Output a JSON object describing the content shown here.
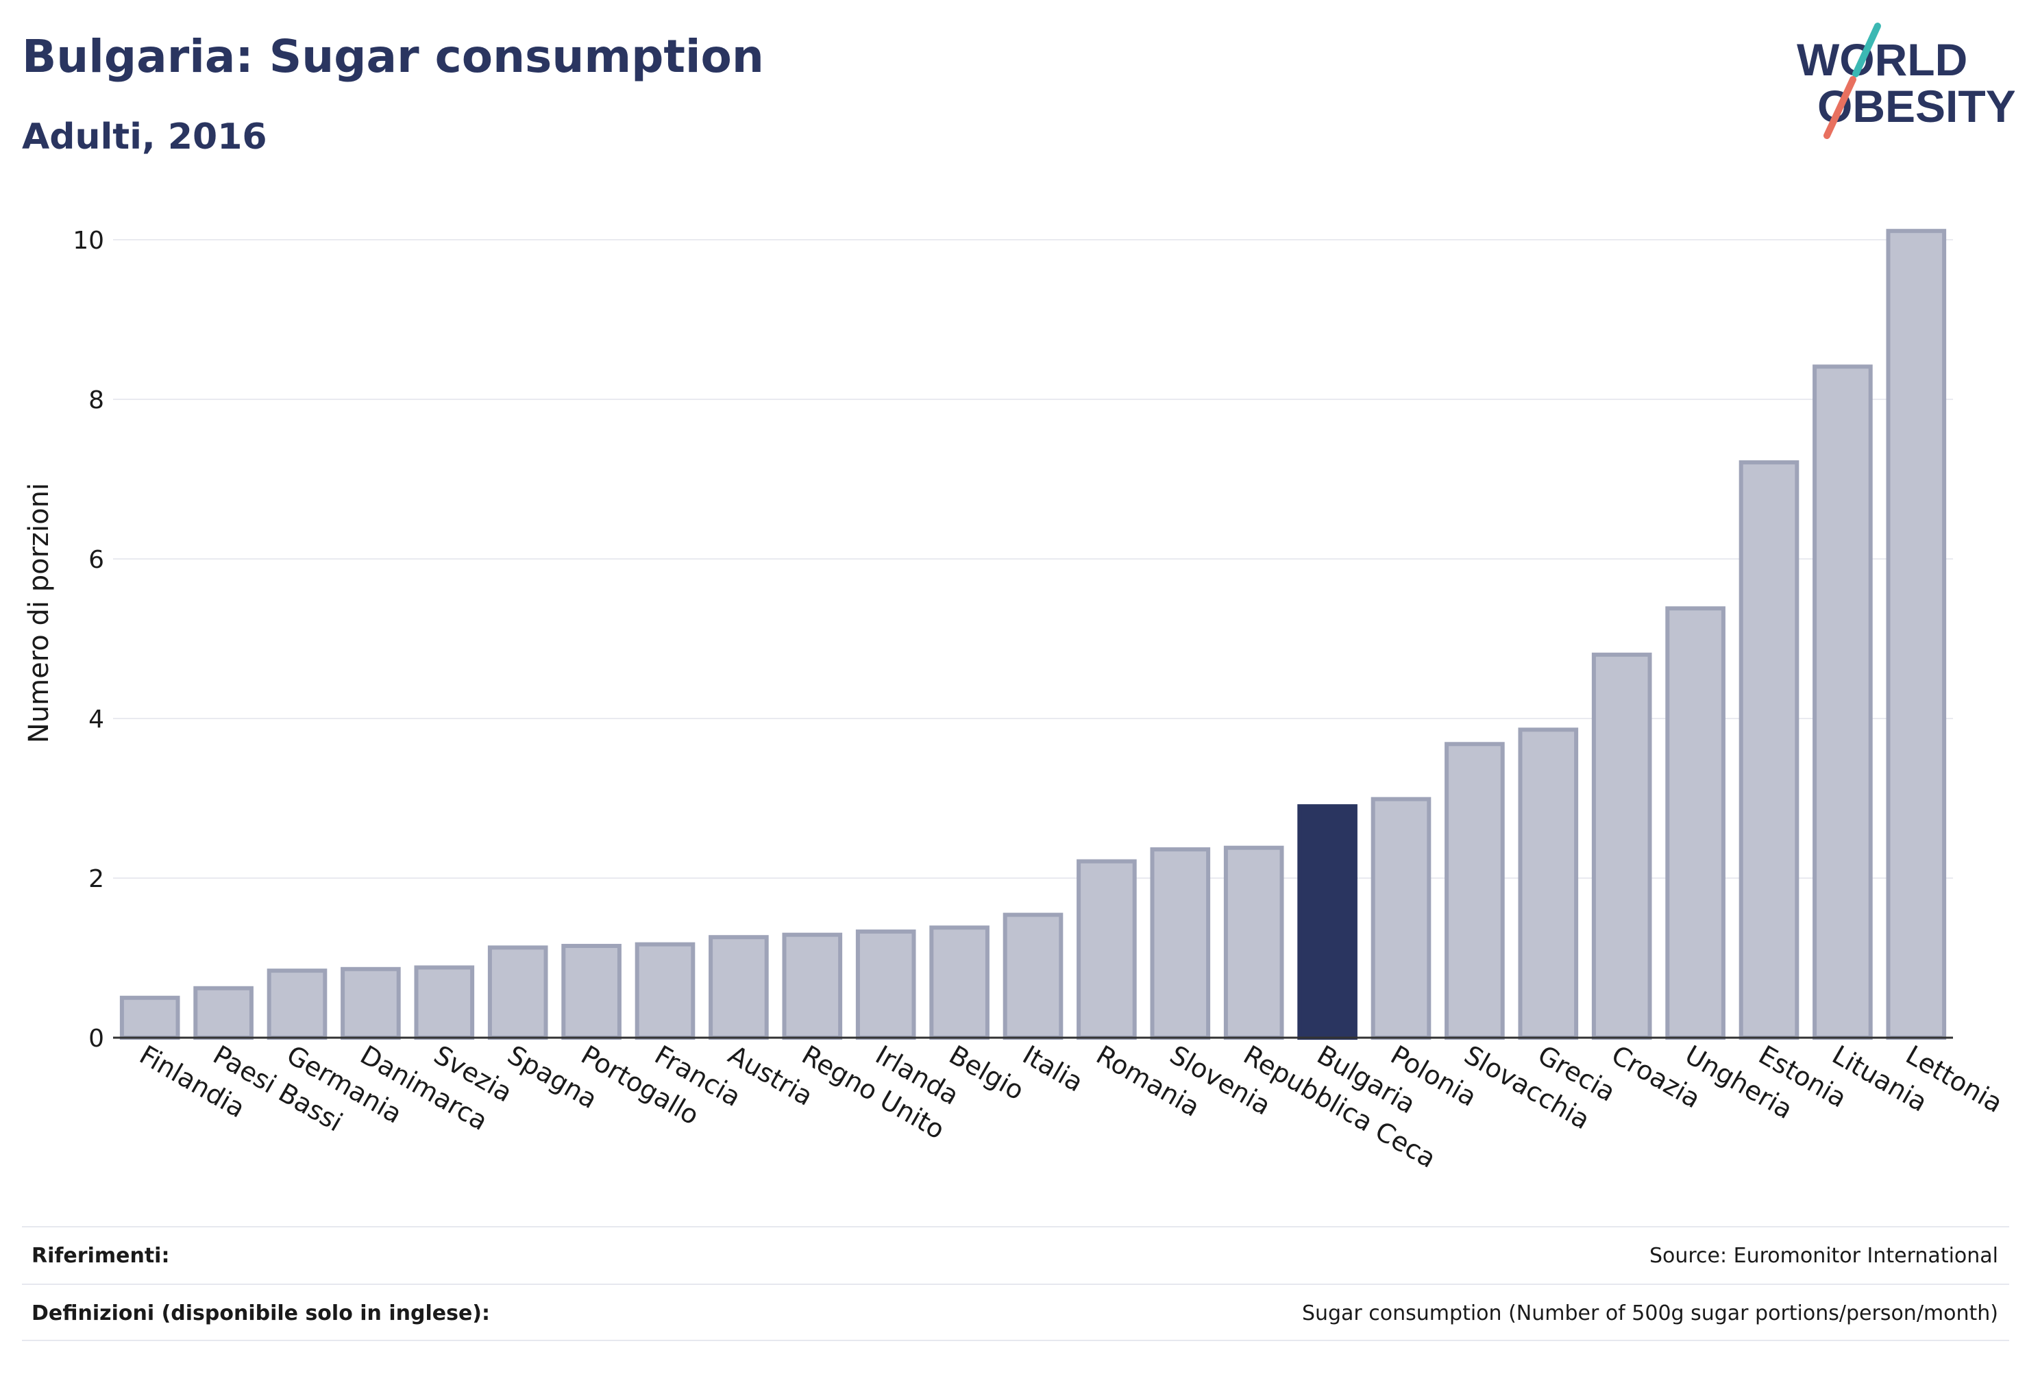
{
  "header": {
    "title": "Bulgaria: Sugar consumption",
    "subtitle": "Adulti, 2016"
  },
  "logo": {
    "line1": "WORLD",
    "line2": "OBESITY",
    "colors": {
      "text": "#2a3560",
      "teal": "#3bb8b3",
      "coral": "#e8705f"
    }
  },
  "chart_data": {
    "type": "bar",
    "ylabel": "Numero di porzioni",
    "xlabel": "",
    "ylim": [
      0,
      10.4
    ],
    "yticks": [
      0,
      2,
      4,
      6,
      8,
      10
    ],
    "grid": true,
    "highlight": "Bulgaria",
    "colors": {
      "bar": "#bfc2d0",
      "bar_edge": "#9ea3b8",
      "highlight": "#2a3560",
      "grid": "#e9eaf0",
      "axis": "#333333"
    },
    "categories": [
      "Finlandia",
      "Paesi Bassi",
      "Germania",
      "Danimarca",
      "Svezia",
      "Spagna",
      "Portogallo",
      "Francia",
      "Austria",
      "Regno Unito",
      "Irlanda",
      "Belgio",
      "Italia",
      "Romania",
      "Slovenia",
      "Repubblica Ceca",
      "Bulgaria",
      "Polonia",
      "Slovacchia",
      "Grecia",
      "Croazia",
      "Ungheria",
      "Estonia",
      "Lituania",
      "Lettonia"
    ],
    "values": [
      0.5,
      0.62,
      0.84,
      0.86,
      0.88,
      1.13,
      1.15,
      1.17,
      1.26,
      1.29,
      1.33,
      1.38,
      1.54,
      2.21,
      2.36,
      2.38,
      2.9,
      2.99,
      3.68,
      3.86,
      4.8,
      5.38,
      7.21,
      8.41,
      10.11
    ]
  },
  "footer": {
    "references_label": "Riferimenti:",
    "references_value": "Source: Euromonitor International",
    "definitions_label": "Definizioni (disponibile solo in inglese):",
    "definitions_value": "Sugar consumption (Number of 500g sugar portions/person/month)"
  }
}
